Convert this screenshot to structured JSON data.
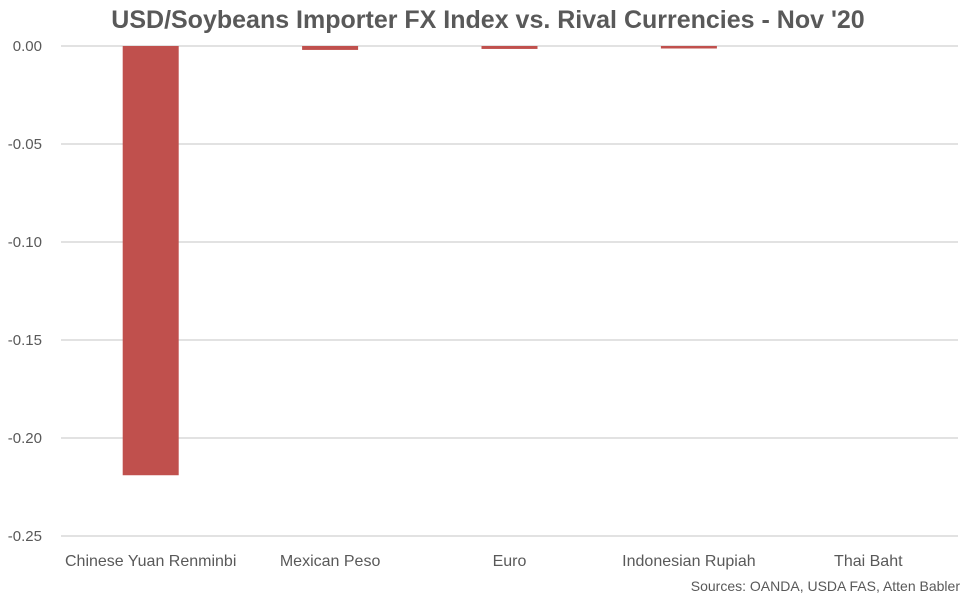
{
  "chart_data": {
    "type": "bar",
    "title": "USD/Soybeans Importer FX Index vs. Rival Currencies - Nov '20",
    "xlabel": "",
    "ylabel": "",
    "categories": [
      "Chinese Yuan Renminbi",
      "Mexican Peso",
      "Euro",
      "Indonesian Rupiah",
      "Thai Baht"
    ],
    "values": [
      -0.219,
      -0.002,
      -0.0015,
      -0.001,
      0.0
    ],
    "ylim": [
      -0.25,
      0.0
    ],
    "yticks": [
      "0.00",
      "-0.05",
      "-0.10",
      "-0.15",
      "-0.20",
      "-0.25"
    ],
    "ytick_values": [
      0.0,
      -0.05,
      -0.1,
      -0.15,
      -0.2,
      -0.25
    ],
    "grid": true,
    "legend": "none",
    "bar_color": "#c0504d",
    "grid_color": "#d9d9d9",
    "text_color": "#595959"
  },
  "source_note": "Sources: OANDA, USDA FAS, Atten Babler"
}
